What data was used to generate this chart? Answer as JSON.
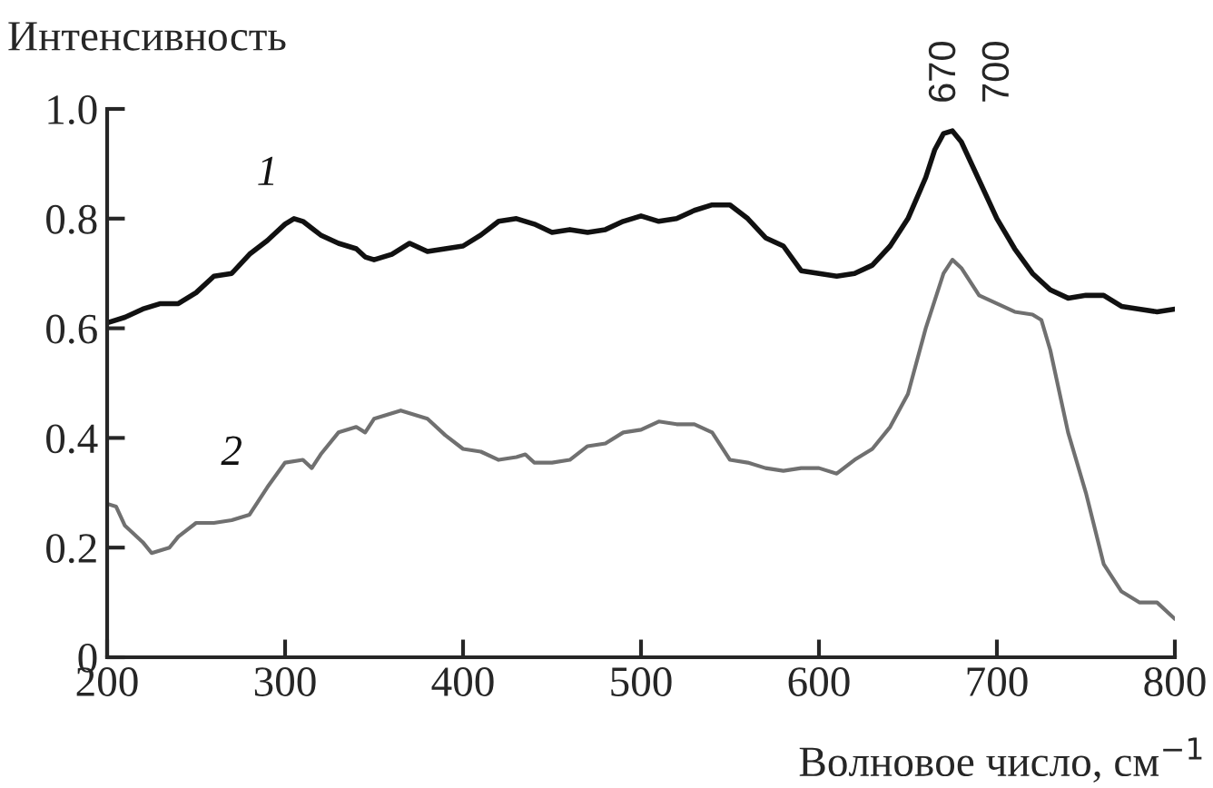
{
  "chart_data": {
    "type": "line",
    "xlabel": "Волновое число, см$^{−1}$",
    "ylabel": "Интенсивность",
    "x": [
      200,
      210,
      220,
      230,
      240,
      250,
      260,
      270,
      280,
      290,
      300,
      305,
      310,
      320,
      330,
      340,
      345,
      350,
      360,
      370,
      380,
      390,
      400,
      410,
      420,
      430,
      440,
      450,
      460,
      470,
      480,
      490,
      500,
      510,
      520,
      530,
      540,
      550,
      560,
      570,
      580,
      590,
      600,
      610,
      620,
      630,
      640,
      650,
      660,
      665,
      670,
      675,
      680,
      690,
      700,
      710,
      720,
      730,
      740,
      750,
      760,
      770,
      780,
      790,
      800
    ],
    "series": [
      {
        "name": "1",
        "color": "#111111",
        "values": [
          0.61,
          0.62,
          0.635,
          0.645,
          0.645,
          0.665,
          0.695,
          0.7,
          0.735,
          0.76,
          0.79,
          0.8,
          0.795,
          0.77,
          0.755,
          0.745,
          0.73,
          0.725,
          0.735,
          0.755,
          0.74,
          0.745,
          0.75,
          0.77,
          0.795,
          0.8,
          0.79,
          0.775,
          0.78,
          0.775,
          0.78,
          0.795,
          0.805,
          0.795,
          0.8,
          0.815,
          0.825,
          0.825,
          0.8,
          0.765,
          0.75,
          0.705,
          0.7,
          0.695,
          0.7,
          0.715,
          0.75,
          0.8,
          0.875,
          0.925,
          0.955,
          0.96,
          0.94,
          0.87,
          0.8,
          0.745,
          0.7,
          0.67,
          0.655,
          0.66,
          0.66,
          0.64,
          0.635,
          0.63,
          0.635
        ]
      },
      {
        "name": "2",
        "color": "#707070",
        "x": [
          200,
          205,
          210,
          220,
          225,
          235,
          240,
          250,
          260,
          270,
          280,
          290,
          300,
          310,
          315,
          320,
          330,
          340,
          345,
          350,
          365,
          375,
          380,
          390,
          400,
          410,
          420,
          430,
          435,
          440,
          450,
          460,
          470,
          480,
          490,
          500,
          510,
          520,
          530,
          540,
          550,
          560,
          570,
          580,
          590,
          600,
          610,
          620,
          630,
          640,
          650,
          660,
          670,
          675,
          680,
          690,
          700,
          710,
          720,
          725,
          730,
          740,
          750,
          760,
          770,
          780,
          790,
          800
        ],
        "values": [
          0.28,
          0.275,
          0.24,
          0.21,
          0.19,
          0.2,
          0.22,
          0.245,
          0.245,
          0.25,
          0.26,
          0.31,
          0.355,
          0.36,
          0.345,
          0.37,
          0.41,
          0.42,
          0.41,
          0.435,
          0.45,
          0.44,
          0.435,
          0.405,
          0.38,
          0.375,
          0.36,
          0.365,
          0.37,
          0.355,
          0.355,
          0.36,
          0.385,
          0.39,
          0.41,
          0.415,
          0.43,
          0.425,
          0.425,
          0.41,
          0.36,
          0.355,
          0.345,
          0.34,
          0.345,
          0.345,
          0.335,
          0.36,
          0.38,
          0.42,
          0.48,
          0.6,
          0.7,
          0.725,
          0.71,
          0.66,
          0.645,
          0.63,
          0.625,
          0.615,
          0.56,
          0.41,
          0.3,
          0.17,
          0.12,
          0.1,
          0.1,
          0.07
        ]
      }
    ],
    "annotations": [
      "670",
      "700"
    ],
    "xlim": [
      200,
      800
    ],
    "xticks": [
      200,
      300,
      400,
      500,
      600,
      700,
      800
    ],
    "ylim": [
      0,
      1.0
    ],
    "yticks": [
      0,
      0.2,
      0.4,
      0.6,
      0.8,
      {
        "value": 1.0,
        "label": "1.0"
      }
    ],
    "grid": false,
    "legend": false,
    "marker": "none",
    "line_style": "solid"
  }
}
